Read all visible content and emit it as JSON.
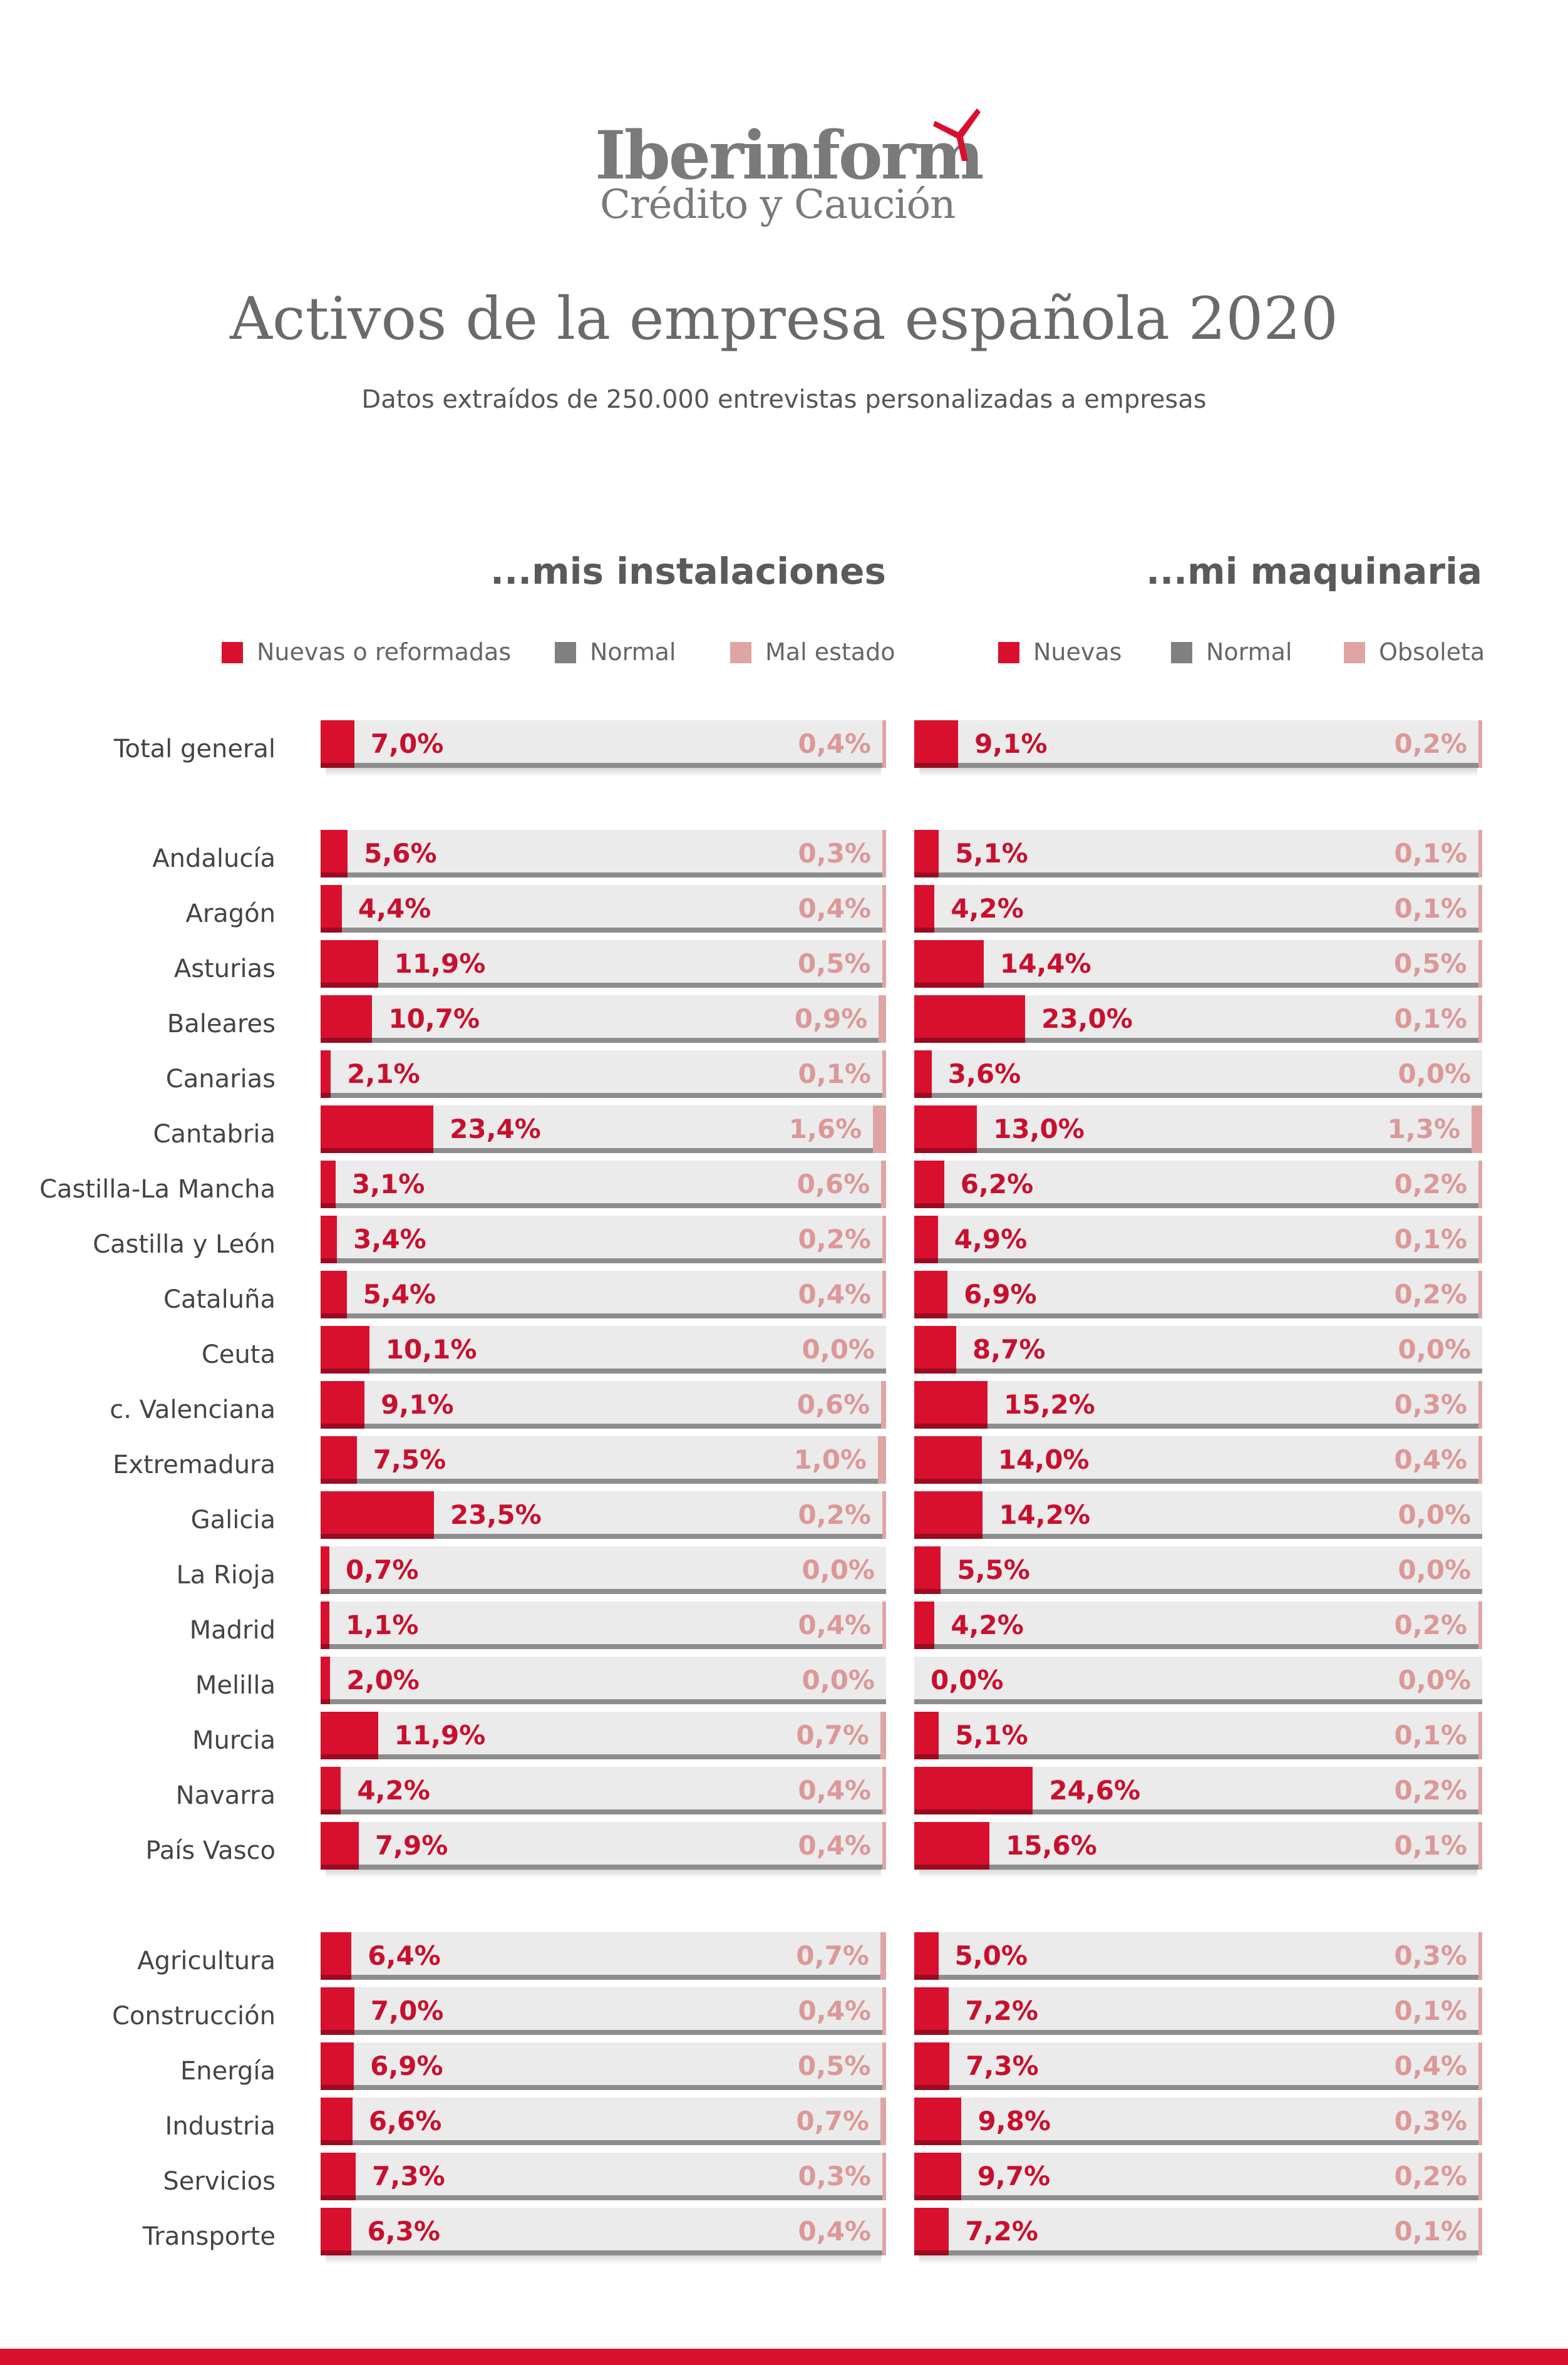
{
  "brand": {
    "name": "Iberinform",
    "tagline": "Crédito y Caución",
    "accent_color": "#d8102e",
    "logo_mark_icon": "swoosh-mark-icon"
  },
  "header": {
    "title": "Activos de la empresa española 2020",
    "subtitle": "Datos extraídos de 250.000 entrevistas personalizadas a empresas"
  },
  "colors": {
    "new": "#d8102e",
    "normal": "#808080",
    "bad": "#dfa5a5",
    "bar_background": "#ebebeb"
  },
  "chart_data": [
    {
      "type": "bar",
      "orientation": "horizontal",
      "stacked": true,
      "title": "...mis instalaciones",
      "legend": [
        "Nuevas o reformadas",
        "Normal",
        "Mal estado"
      ],
      "legend_position": "top",
      "xlim": [
        0,
        100
      ],
      "categories": [
        "Total general",
        "Andalucía",
        "Aragón",
        "Asturias",
        "Baleares",
        "Canarias",
        "Cantabria",
        "Castilla-La Mancha",
        "Castilla y León",
        "Cataluña",
        "Ceuta",
        "c. Valenciana",
        "Extremadura",
        "Galicia",
        "La Rioja",
        "Madrid",
        "Melilla",
        "Murcia",
        "Navarra",
        "País Vasco",
        "Agricultura",
        "Construcción",
        "Energía",
        "Industria",
        "Servicios",
        "Transporte"
      ],
      "series": [
        {
          "name": "Nuevas o reformadas",
          "values": [
            7.0,
            5.6,
            4.4,
            11.9,
            10.7,
            2.1,
            23.4,
            3.1,
            3.4,
            5.4,
            10.1,
            9.1,
            7.5,
            23.5,
            0.7,
            1.1,
            2.0,
            11.9,
            4.2,
            7.9,
            6.4,
            7.0,
            6.9,
            6.6,
            7.3,
            6.3
          ]
        },
        {
          "name": "Mal estado",
          "values": [
            0.4,
            0.3,
            0.4,
            0.5,
            0.9,
            0.1,
            1.6,
            0.6,
            0.2,
            0.4,
            0.0,
            0.6,
            1.0,
            0.2,
            0.0,
            0.4,
            0.0,
            0.7,
            0.4,
            0.4,
            0.7,
            0.4,
            0.5,
            0.7,
            0.3,
            0.4
          ]
        }
      ],
      "labels_new": [
        "7,0%",
        "5,6%",
        "4,4%",
        "11,9%",
        "10,7%",
        "2,1%",
        "23,4%",
        "3,1%",
        "3,4%",
        "5,4%",
        "10,1%",
        "9,1%",
        "7,5%",
        "23,5%",
        "0,7%",
        "1,1%",
        "2,0%",
        "11,9%",
        "4,2%",
        "7,9%",
        "6,4%",
        "7,0%",
        "6,9%",
        "6,6%",
        "7,3%",
        "6,3%"
      ],
      "labels_bad": [
        "0,4%",
        "0,3%",
        "0,4%",
        "0,5%",
        "0,9%",
        "0,1%",
        "1,6%",
        "0,6%",
        "0,2%",
        "0,4%",
        "0,0%",
        "0,6%",
        "1,0%",
        "0,2%",
        "0,0%",
        "0,4%",
        "0,0%",
        "0,7%",
        "0,4%",
        "0,4%",
        "0,7%",
        "0,4%",
        "0,5%",
        "0,7%",
        "0,3%",
        "0,4%"
      ]
    },
    {
      "type": "bar",
      "orientation": "horizontal",
      "stacked": true,
      "title": "...mi maquinaria",
      "legend": [
        "Nuevas",
        "Normal",
        "Obsoleta"
      ],
      "legend_position": "top",
      "xlim": [
        0,
        100
      ],
      "categories": [
        "Total general",
        "Andalucía",
        "Aragón",
        "Asturias",
        "Baleares",
        "Canarias",
        "Cantabria",
        "Castilla-La Mancha",
        "Castilla y León",
        "Cataluña",
        "Ceuta",
        "c. Valenciana",
        "Extremadura",
        "Galicia",
        "La Rioja",
        "Madrid",
        "Melilla",
        "Murcia",
        "Navarra",
        "País Vasco",
        "Agricultura",
        "Construcción",
        "Energía",
        "Industria",
        "Servicios",
        "Transporte"
      ],
      "series": [
        {
          "name": "Nuevas",
          "values": [
            9.1,
            5.1,
            4.2,
            14.4,
            23.0,
            3.6,
            13.0,
            6.2,
            4.9,
            6.9,
            8.7,
            15.2,
            14.0,
            14.2,
            5.5,
            4.2,
            0.0,
            5.1,
            24.6,
            15.6,
            5.0,
            7.2,
            7.3,
            9.8,
            9.7,
            7.2
          ]
        },
        {
          "name": "Obsoleta",
          "values": [
            0.2,
            0.1,
            0.1,
            0.5,
            0.1,
            0.0,
            1.3,
            0.2,
            0.1,
            0.2,
            0.0,
            0.3,
            0.4,
            0.0,
            0.0,
            0.2,
            0.0,
            0.1,
            0.2,
            0.1,
            0.3,
            0.1,
            0.4,
            0.3,
            0.2,
            0.1
          ]
        }
      ],
      "labels_new": [
        "9,1%",
        "5,1%",
        "4,2%",
        "14,4%",
        "23,0%",
        "3,6%",
        "13,0%",
        "6,2%",
        "4,9%",
        "6,9%",
        "8,7%",
        "15,2%",
        "14,0%",
        "14,2%",
        "5,5%",
        "4,2%",
        "0,0%",
        "5,1%",
        "24,6%",
        "15,6%",
        "5,0%",
        "7,2%",
        "7,3%",
        "9,8%",
        "9,7%",
        "7,2%"
      ],
      "labels_bad": [
        "0,2%",
        "0,1%",
        "0,1%",
        "0,5%",
        "0,1%",
        "0,0%",
        "1,3%",
        "0,2%",
        "0,1%",
        "0,2%",
        "0,0%",
        "0,3%",
        "0,4%",
        "0,0%",
        "0,0%",
        "0,2%",
        "0,0%",
        "0,1%",
        "0,2%",
        "0,1%",
        "0,3%",
        "0,1%",
        "0,4%",
        "0,3%",
        "0,2%",
        "0,1%"
      ]
    }
  ]
}
